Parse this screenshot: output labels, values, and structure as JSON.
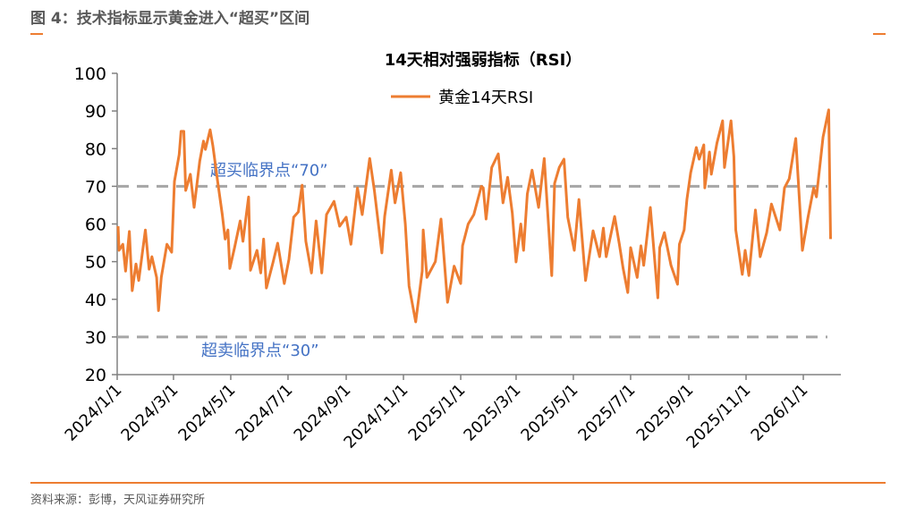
{
  "figure_title": "图 4：技术指标显示黄金进入“超买”区间",
  "source": "资料来源：彭博，天风证券研究所",
  "colors": {
    "line": "#ed7d31",
    "threshold": "#a6a6a6",
    "annotation": "#4472c4",
    "accent": "#ed7d31"
  },
  "chart_data": {
    "type": "line",
    "title": "14天相对强弱指标（RSI）",
    "xlabel": "",
    "ylabel": "",
    "ylim": [
      20,
      100
    ],
    "yticks": [
      "20",
      "30",
      "40",
      "50",
      "60",
      "70",
      "80",
      "90",
      "100"
    ],
    "x_unit": "days since 2024/1/1",
    "xlim": [
      0,
      771
    ],
    "xticks": [
      {
        "label": "2024/1/1",
        "day": 0
      },
      {
        "label": "2024/3/1",
        "day": 60
      },
      {
        "label": "2024/5/1",
        "day": 121
      },
      {
        "label": "2024/7/1",
        "day": 182
      },
      {
        "label": "2024/9/1",
        "day": 244
      },
      {
        "label": "2024/11/1",
        "day": 305
      },
      {
        "label": "2025/1/1",
        "day": 366
      },
      {
        "label": "2025/3/1",
        "day": 425
      },
      {
        "label": "2025/5/1",
        "day": 486
      },
      {
        "label": "2025/7/1",
        "day": 547
      },
      {
        "label": "2025/9/1",
        "day": 609
      },
      {
        "label": "2025/11/1",
        "day": 670
      },
      {
        "label": "2026/1/1",
        "day": 731
      }
    ],
    "legend": {
      "position": "top-center"
    },
    "series": [
      {
        "name": "黄金14天RSI",
        "points": [
          [
            1,
            59.4
          ],
          [
            2,
            53
          ],
          [
            6,
            54.6
          ],
          [
            9,
            47.5
          ],
          [
            13,
            58
          ],
          [
            16,
            42.3
          ],
          [
            20,
            49.4
          ],
          [
            23,
            45
          ],
          [
            30,
            58.4
          ],
          [
            34,
            48
          ],
          [
            37,
            51.3
          ],
          [
            42,
            45.8
          ],
          [
            44,
            37
          ],
          [
            47,
            45.8
          ],
          [
            53,
            54.6
          ],
          [
            58,
            52.5
          ],
          [
            61,
            71.3
          ],
          [
            66,
            78.4
          ],
          [
            68,
            84.6
          ],
          [
            71,
            84.6
          ],
          [
            73,
            68.9
          ],
          [
            78,
            73.2
          ],
          [
            82,
            64.4
          ],
          [
            88,
            76.7
          ],
          [
            92,
            82
          ],
          [
            94,
            79.8
          ],
          [
            99,
            85
          ],
          [
            102,
            80.7
          ],
          [
            107,
            71.3
          ],
          [
            112,
            62.5
          ],
          [
            115,
            56
          ],
          [
            118,
            58.4
          ],
          [
            120,
            48.2
          ],
          [
            125,
            53.7
          ],
          [
            131,
            60.8
          ],
          [
            134,
            55.4
          ],
          [
            140,
            67.2
          ],
          [
            142,
            47.7
          ],
          [
            149,
            53
          ],
          [
            153,
            47
          ],
          [
            156,
            56
          ],
          [
            159,
            43
          ],
          [
            166,
            49.8
          ],
          [
            171,
            54.9
          ],
          [
            178,
            44.2
          ],
          [
            183,
            50.6
          ],
          [
            188,
            61.8
          ],
          [
            193,
            63.2
          ],
          [
            197,
            70.3
          ],
          [
            201,
            55.4
          ],
          [
            207,
            47
          ],
          [
            212,
            60.8
          ],
          [
            218,
            47
          ],
          [
            223,
            62.5
          ],
          [
            231,
            66
          ],
          [
            237,
            59.4
          ],
          [
            244,
            61.8
          ],
          [
            249,
            54.6
          ],
          [
            256,
            69.6
          ],
          [
            261,
            62.5
          ],
          [
            269,
            77.4
          ],
          [
            274,
            68.9
          ],
          [
            282,
            52.3
          ],
          [
            285,
            62
          ],
          [
            292,
            74.3
          ],
          [
            296,
            65.6
          ],
          [
            302,
            73.6
          ],
          [
            307,
            60
          ],
          [
            311,
            43.5
          ],
          [
            318,
            34
          ],
          [
            325,
            47.5
          ],
          [
            326,
            58.4
          ],
          [
            330,
            45.8
          ],
          [
            339,
            50
          ],
          [
            345,
            61.3
          ],
          [
            352,
            39.2
          ],
          [
            359,
            48.8
          ],
          [
            366,
            44.2
          ],
          [
            368,
            54.2
          ],
          [
            374,
            60
          ],
          [
            380,
            62.5
          ],
          [
            388,
            70
          ],
          [
            390,
            69.6
          ],
          [
            393,
            61.3
          ],
          [
            399,
            75
          ],
          [
            406,
            78.6
          ],
          [
            411,
            65.6
          ],
          [
            416,
            72.4
          ],
          [
            421,
            62.9
          ],
          [
            425,
            49.9
          ],
          [
            430,
            60
          ],
          [
            433,
            53
          ],
          [
            437,
            68
          ],
          [
            442,
            74.3
          ],
          [
            449,
            64.4
          ],
          [
            455,
            77.4
          ],
          [
            463,
            46.3
          ],
          [
            466,
            70.8
          ],
          [
            471,
            75
          ],
          [
            476,
            77.2
          ],
          [
            480,
            61.8
          ],
          [
            487,
            53
          ],
          [
            492,
            66.5
          ],
          [
            499,
            45
          ],
          [
            507,
            58.2
          ],
          [
            514,
            51.3
          ],
          [
            518,
            58.9
          ],
          [
            521,
            51.3
          ],
          [
            530,
            62
          ],
          [
            535,
            54.6
          ],
          [
            539,
            48.2
          ],
          [
            544,
            41.8
          ],
          [
            547,
            53.7
          ],
          [
            554,
            45.8
          ],
          [
            558,
            54.2
          ],
          [
            561,
            49
          ],
          [
            568,
            64.4
          ],
          [
            576,
            40.4
          ],
          [
            578,
            53.7
          ],
          [
            583,
            57.7
          ],
          [
            590,
            49
          ],
          [
            597,
            44
          ],
          [
            599,
            54.6
          ],
          [
            604,
            58.4
          ],
          [
            607,
            66.5
          ],
          [
            611,
            73.6
          ],
          [
            617,
            80.3
          ],
          [
            620,
            77.2
          ],
          [
            625,
            81
          ],
          [
            626,
            69.6
          ],
          [
            631,
            79.1
          ],
          [
            633,
            73.2
          ],
          [
            639,
            81.5
          ],
          [
            645,
            87.4
          ],
          [
            647,
            75
          ],
          [
            654,
            87.4
          ],
          [
            657,
            77.9
          ],
          [
            659,
            58.4
          ],
          [
            666,
            46.6
          ],
          [
            669,
            53
          ],
          [
            673,
            46.3
          ],
          [
            678,
            58.9
          ],
          [
            680,
            63.7
          ],
          [
            685,
            51.3
          ],
          [
            692,
            57.7
          ],
          [
            697,
            65.3
          ],
          [
            706,
            58.4
          ],
          [
            711,
            69.6
          ],
          [
            716,
            72
          ],
          [
            723,
            82.7
          ],
          [
            730,
            53
          ],
          [
            736,
            61.8
          ],
          [
            742,
            69.6
          ],
          [
            745,
            67.2
          ],
          [
            752,
            83.1
          ],
          [
            758,
            90.3
          ],
          [
            760,
            56
          ]
        ]
      }
    ],
    "reference_lines": [
      {
        "value": 70,
        "label": "超买临界点“70”"
      },
      {
        "value": 30,
        "label": "超卖临界点“30”"
      }
    ]
  }
}
